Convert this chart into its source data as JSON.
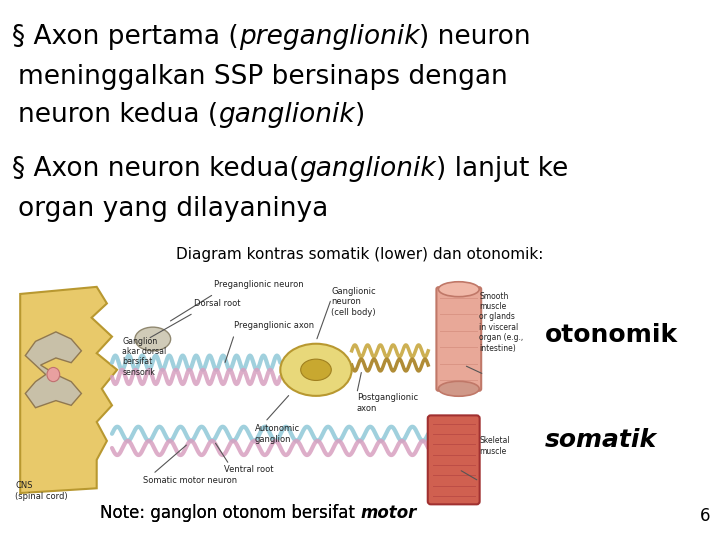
{
  "background_color": "#ffffff",
  "text_color": "#000000",
  "font_size_bullet": 19,
  "font_size_diagram_label": 11,
  "font_size_side_label": 18,
  "font_size_note": 12,
  "font_size_page": 12,
  "bullet1_line1_normal1": "§ Axon pertama (",
  "bullet1_line1_italic": "preganglionik",
  "bullet1_line1_normal2": ") neuron",
  "bullet1_line2": "meninggalkan SSP bersinaps dengan",
  "bullet1_line3_normal1": "neuron kedua (",
  "bullet1_line3_italic": "ganglionik",
  "bullet1_line3_normal2": ")",
  "bullet2_line1_normal1": "§ Axon neuron kedua(",
  "bullet2_line1_italic": "ganglionik",
  "bullet2_line1_normal2": ") lanjut ke",
  "bullet2_line2": "organ yang dilayaninya",
  "diagram_label": "Diagram kontras somatik (lower) dan otonomik:",
  "label_otonomik": "otonomik",
  "label_somatik": "somatik",
  "note_normal": "Note: ganglon otonom bersifat ",
  "note_italic": "motor",
  "page_number": "6",
  "spinal_color": "#e8c96a",
  "spinal_edge": "#b89830",
  "ganglion_color": "#d0c8b0",
  "ganglion_edge": "#908870",
  "auto_ganglion_color": "#e8d87a",
  "auto_ganglion_edge": "#b89830",
  "smooth_muscle_color": "#e8a090",
  "smooth_muscle_edge": "#c07060",
  "skel_muscle_color1": "#e07060",
  "skel_muscle_edge": "#a04030",
  "axon_color1": "#90c8d8",
  "axon_color2": "#d8a0c0",
  "postganglionic_color": "#c8a840",
  "small_label_color": "#222222",
  "small_fs": 6.0
}
